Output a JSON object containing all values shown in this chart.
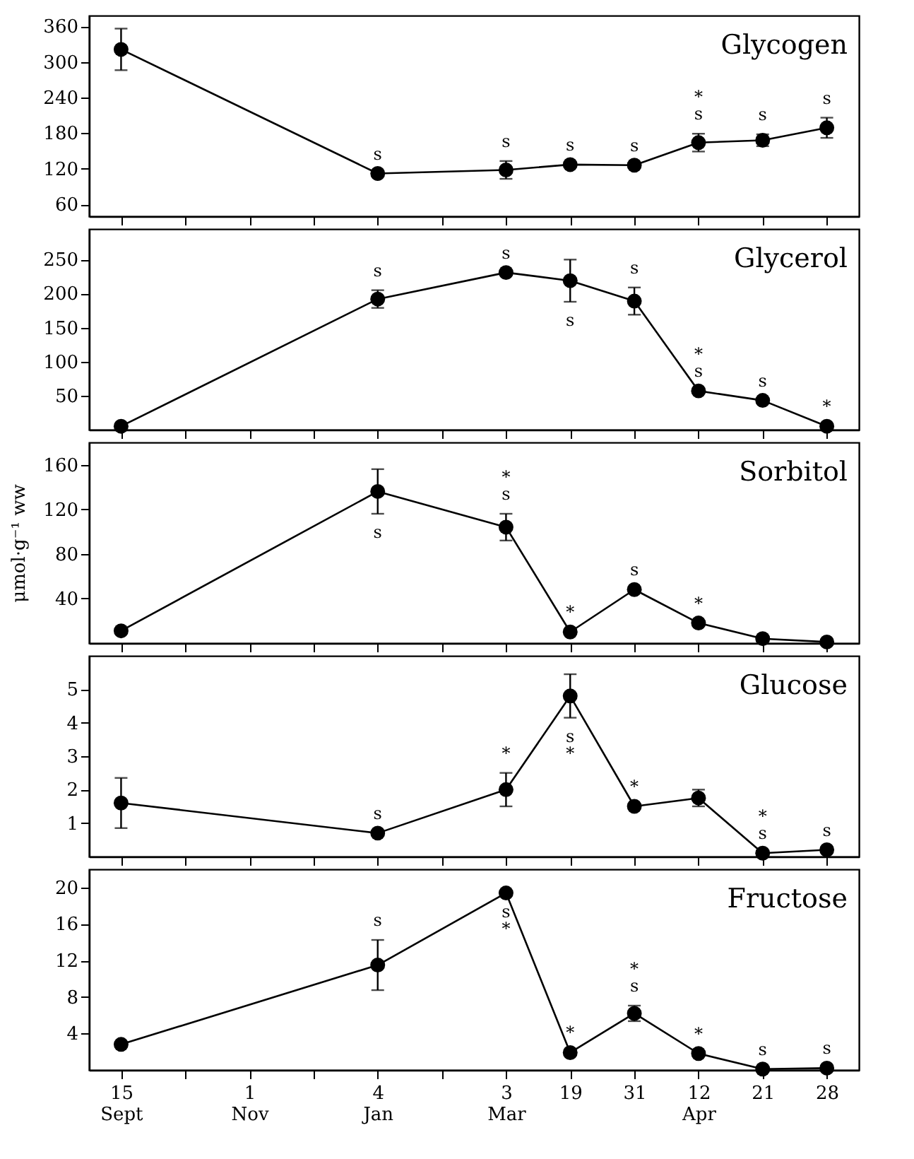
{
  "chart_data": [
    {
      "type": "line",
      "title": "Glycogen",
      "categories": [
        "15 Sept",
        null,
        "1 Nov",
        null,
        "4 Jan",
        null,
        "3 Mar",
        "19",
        "31",
        "12 Apr",
        "21",
        "28"
      ],
      "values": [
        321,
        null,
        null,
        null,
        112,
        null,
        118,
        127,
        126,
        164,
        168,
        189
      ],
      "errors": [
        35,
        null,
        null,
        null,
        null,
        null,
        15,
        null,
        null,
        15,
        10,
        17
      ],
      "color": "#000000",
      "marker": "circle",
      "line_style": "solid",
      "ylim": [
        40,
        378
      ],
      "yticks": [
        60,
        120,
        180,
        240,
        300,
        360
      ],
      "tick_labels": "y",
      "annotations": [
        {
          "text": "s",
          "x": "4 Jan",
          "y": 112
        },
        {
          "text": "s",
          "x": "3 Mar",
          "y": 118
        },
        {
          "text": "s",
          "x": "19",
          "y": 127
        },
        {
          "text": "s",
          "x": "31",
          "y": 126
        },
        {
          "text": "s",
          "x": "12 Apr",
          "y": 164
        },
        {
          "text": "*",
          "x": "12 Apr",
          "y": 164
        },
        {
          "text": "s",
          "x": "21",
          "y": 168
        },
        {
          "text": "s",
          "x": "28",
          "y": 189
        }
      ]
    },
    {
      "type": "line",
      "title": "Glycerol",
      "categories": [
        "15 Sept",
        null,
        "1 Nov",
        null,
        "4 Jan",
        null,
        "3 Mar",
        "19",
        "31",
        "12 Apr",
        "21",
        "28"
      ],
      "values": [
        5,
        null,
        null,
        null,
        192,
        null,
        231,
        219,
        189,
        57,
        43,
        5
      ],
      "errors": [
        null,
        null,
        null,
        null,
        13,
        null,
        null,
        31,
        20,
        null,
        null,
        null
      ],
      "color": "#000000",
      "marker": "circle",
      "line_style": "solid",
      "ylim": [
        0,
        295
      ],
      "yticks": [
        50,
        100,
        150,
        200,
        250
      ],
      "tick_labels": "y",
      "annotations": [
        {
          "text": "s",
          "x": "4 Jan",
          "y": 192
        },
        {
          "text": "s",
          "x": "3 Mar",
          "y": 231
        },
        {
          "text": "s",
          "x": "19",
          "y": 219
        },
        {
          "text": "s",
          "x": "31",
          "y": 189
        },
        {
          "text": "s",
          "x": "12 Apr",
          "y": 57
        },
        {
          "text": "*",
          "x": "12 Apr",
          "y": 57
        },
        {
          "text": "s",
          "x": "21",
          "y": 43
        },
        {
          "text": "*",
          "x": "28",
          "y": 5
        }
      ]
    },
    {
      "type": "line",
      "title": "Sorbitol",
      "ylabel": "μmol·g⁻¹ ww",
      "categories": [
        "15 Sept",
        null,
        "1 Nov",
        null,
        "4 Jan",
        null,
        "3 Mar",
        "19",
        "31",
        "12 Apr",
        "21",
        "28"
      ],
      "values": [
        11,
        null,
        null,
        null,
        136,
        null,
        104,
        10,
        48,
        18,
        4,
        1
      ],
      "errors": [
        null,
        null,
        null,
        null,
        20,
        null,
        12,
        null,
        null,
        null,
        null,
        null
      ],
      "color": "#000000",
      "marker": "circle",
      "line_style": "solid",
      "ylim": [
        0,
        180
      ],
      "yticks": [
        40,
        80,
        120,
        160
      ],
      "tick_labels": "y",
      "annotations": [
        {
          "text": "s",
          "x": "4 Jan",
          "y": 136
        },
        {
          "text": "s",
          "x": "3 Mar",
          "y": 104
        },
        {
          "text": "*",
          "x": "3 Mar",
          "y": 104
        },
        {
          "text": "*",
          "x": "19",
          "y": 10
        },
        {
          "text": "s",
          "x": "31",
          "y": 48
        },
        {
          "text": "*",
          "x": "12 Apr",
          "y": 18
        }
      ]
    },
    {
      "type": "line",
      "title": "Glucose",
      "categories": [
        "15 Sept",
        null,
        "1 Nov",
        null,
        "4 Jan",
        null,
        "3 Mar",
        "19",
        "31",
        "12 Apr",
        "21",
        "28"
      ],
      "values": [
        1.6,
        null,
        null,
        null,
        0.7,
        null,
        2.0,
        4.8,
        1.5,
        1.75,
        0.1,
        0.2
      ],
      "errors": [
        0.75,
        null,
        null,
        null,
        null,
        null,
        0.5,
        0.65,
        null,
        0.25,
        null,
        null
      ],
      "color": "#000000",
      "marker": "circle",
      "line_style": "solid",
      "ylim": [
        0,
        6
      ],
      "yticks": [
        1,
        2,
        3,
        4,
        5
      ],
      "tick_labels": "y",
      "annotations": [
        {
          "text": "s",
          "x": "4 Jan",
          "y": 0.7
        },
        {
          "text": "*",
          "x": "3 Mar",
          "y": 2.0
        },
        {
          "text": "s",
          "x": "19",
          "y": 4.8
        },
        {
          "text": "*",
          "x": "19",
          "y": 4.8
        },
        {
          "text": "*",
          "x": "31",
          "y": 1.5
        },
        {
          "text": "s",
          "x": "21",
          "y": 0.1
        },
        {
          "text": "*",
          "x": "21",
          "y": 0.1
        },
        {
          "text": "s",
          "x": "28",
          "y": 0.2
        }
      ]
    },
    {
      "type": "line",
      "title": "Fructose",
      "categories": [
        "15 Sept",
        null,
        "1 Nov",
        null,
        "4 Jan",
        null,
        "3 Mar",
        "19",
        "31",
        "12 Apr",
        "21",
        "28"
      ],
      "values": [
        2.8,
        null,
        null,
        null,
        11.5,
        null,
        19.4,
        1.9,
        6.2,
        1.8,
        0.1,
        0.2
      ],
      "errors": [
        null,
        null,
        null,
        null,
        2.75,
        null,
        null,
        null,
        0.85,
        null,
        null,
        null
      ],
      "color": "#000000",
      "marker": "circle",
      "line_style": "solid",
      "ylim": [
        0,
        22
      ],
      "yticks": [
        4,
        8,
        12,
        16,
        20
      ],
      "annotations": [
        {
          "text": "s",
          "x": "4 Jan",
          "y": 11.5
        },
        {
          "text": "s",
          "x": "3 Mar",
          "y": 19.4
        },
        {
          "text": "*",
          "x": "3 Mar",
          "y": 19.4
        },
        {
          "text": "*",
          "x": "19",
          "y": 1.9
        },
        {
          "text": "s",
          "x": "31",
          "y": 6.2
        },
        {
          "text": "*",
          "x": "31",
          "y": 6.2
        },
        {
          "text": "*",
          "x": "12 Apr",
          "y": 1.8
        },
        {
          "text": "s",
          "x": "21",
          "y": 0.1
        },
        {
          "text": "s",
          "x": "28",
          "y": 0.2
        }
      ]
    }
  ]
}
